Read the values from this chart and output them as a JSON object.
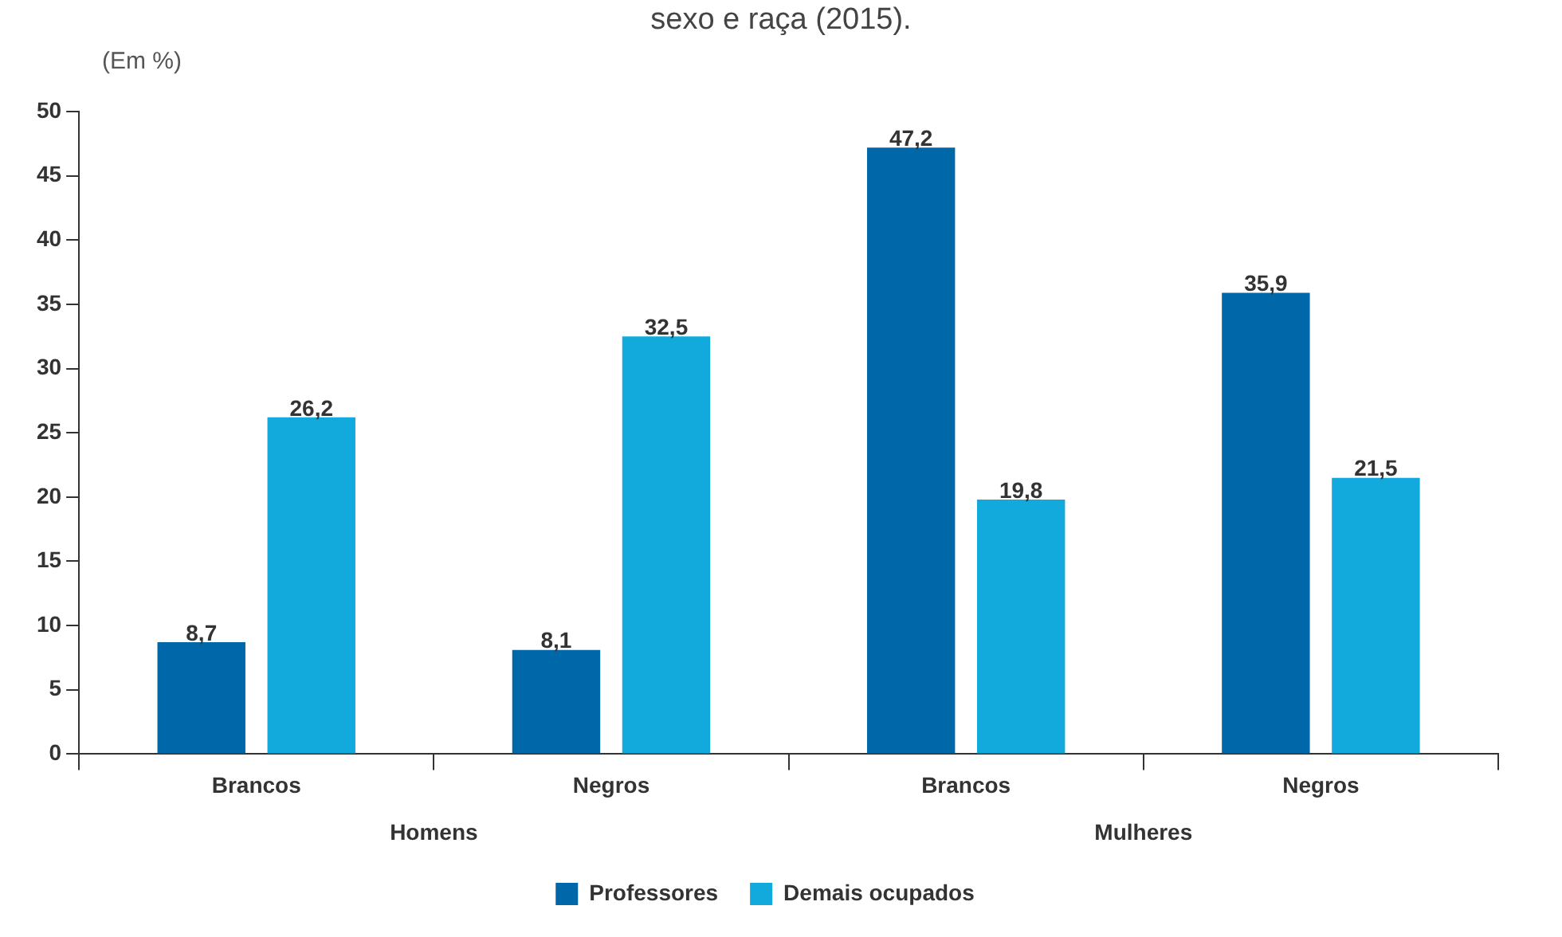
{
  "chart_data": {
    "type": "bar",
    "title": "sexo e raça (2015).",
    "ylabel": "(Em %)",
    "categories": [
      "Brancos",
      "Negros",
      "Brancos",
      "Negros"
    ],
    "series": [
      {
        "name": "Professores",
        "color": "#0068a8",
        "values": [
          8.7,
          8.1,
          47.2,
          35.9
        ],
        "value_labels": [
          "8,7",
          "8,1",
          "47,2",
          "35,9"
        ]
      },
      {
        "name": "Demais ocupados",
        "color": "#12a9dc",
        "values": [
          26.2,
          32.5,
          19.8,
          21.5
        ],
        "value_labels": [
          "26,2",
          "32,5",
          "19,8",
          "21,5"
        ]
      }
    ],
    "annotations": [
      "Homens",
      "Mulheres"
    ],
    "ylim": [
      0,
      50
    ],
    "yticks": [
      0,
      5,
      10,
      15,
      20,
      25,
      30,
      35,
      40,
      45,
      50
    ],
    "grid": false,
    "legend": "bottom"
  }
}
